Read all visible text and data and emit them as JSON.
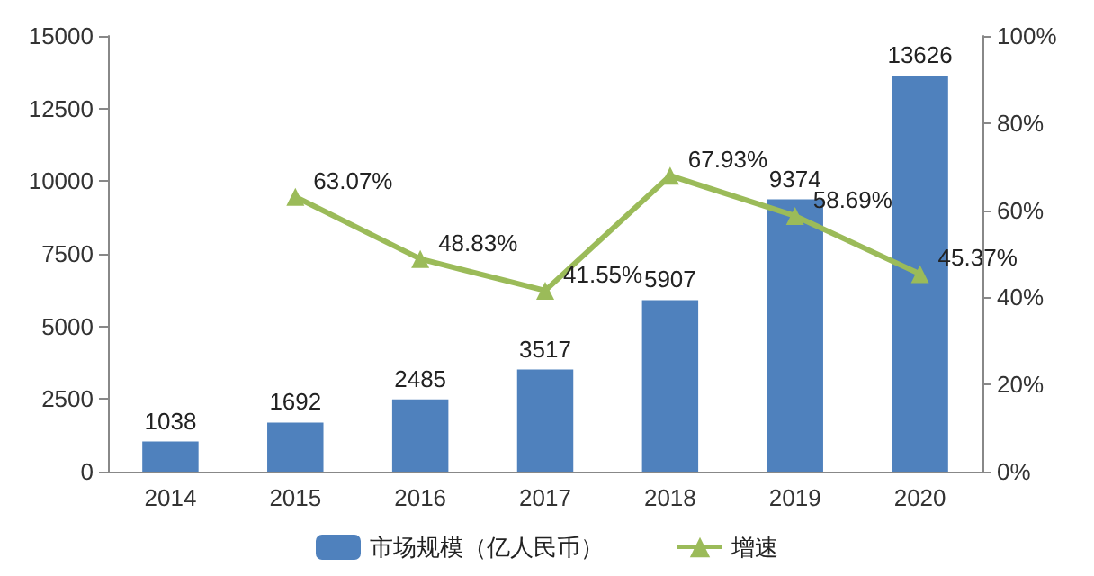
{
  "chart_data": {
    "type": "bar",
    "categories": [
      "2014",
      "2015",
      "2016",
      "2017",
      "2018",
      "2019",
      "2020"
    ],
    "series": [
      {
        "name": "市场规模（亿人民币）",
        "color": "#4f81bd",
        "values": [
          1038,
          1692,
          2485,
          3517,
          5907,
          9374,
          13626
        ],
        "value_labels": [
          "1038",
          "1692",
          "2485",
          "3517",
          "5907",
          "9374",
          "13626"
        ]
      },
      {
        "name": "增速",
        "type": "line",
        "axis": "y2",
        "color": "#9bbb59",
        "marker": "triangle",
        "values": [
          null,
          63.07,
          48.83,
          41.55,
          67.93,
          58.69,
          45.37
        ],
        "value_labels": [
          null,
          "63.07%",
          "48.83%",
          "41.55%",
          "67.93%",
          "58.69%",
          "45.37%"
        ]
      }
    ],
    "ylim": [
      0,
      15000
    ],
    "yticks": [
      0,
      2500,
      5000,
      7500,
      10000,
      12500,
      15000
    ],
    "y2lim": [
      0,
      100
    ],
    "y2ticks": [
      {
        "value": 0,
        "label": "0%"
      },
      {
        "value": 20,
        "label": "20%"
      },
      {
        "value": 40,
        "label": "40%"
      },
      {
        "value": 60,
        "label": "60%"
      },
      {
        "value": 80,
        "label": "80%"
      },
      {
        "value": 100,
        "label": "100%"
      }
    ],
    "grid": false,
    "legend": "bottom"
  }
}
